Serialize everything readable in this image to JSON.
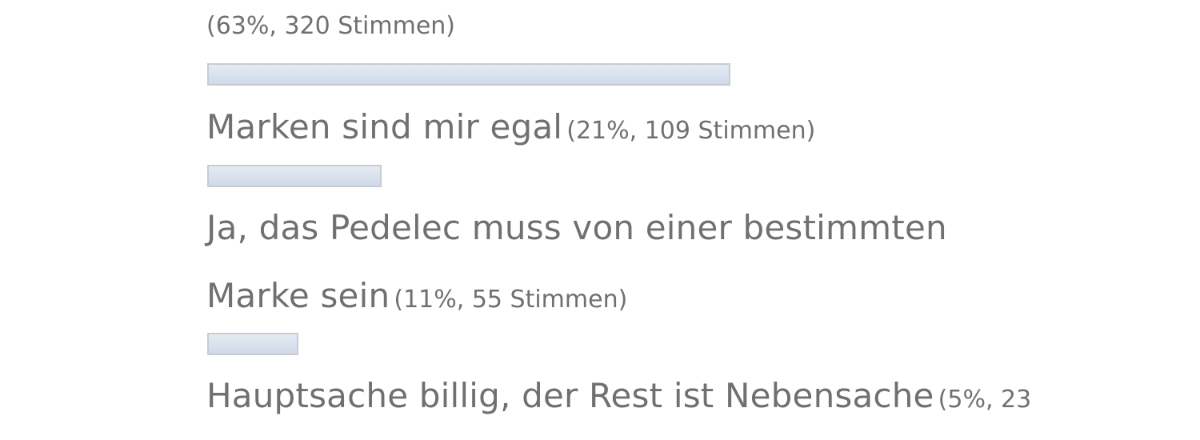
{
  "chart_data": {
    "type": "bar",
    "orientation": "horizontal",
    "title": "",
    "categories": [
      "",
      "Marken sind mir egal",
      "Ja, das Pedelec muss von einer bestimmten Marke sein",
      "Hauptsache billig, der Rest ist Nebensache"
    ],
    "series": [
      {
        "values": [
          63,
          21,
          11,
          5
        ],
        "votes": [
          320,
          109,
          55,
          23
        ]
      }
    ],
    "meta_texts": [
      "(63%, 320 Stimmen)",
      "(21%, 109 Stimmen)",
      "(11%, 55 Stimmen)",
      "(5%, 23"
    ],
    "label_lines": {
      "option_2": "Marken sind mir egal",
      "option_3_line1": "Ja, das Pedelec muss von einer bestimmten",
      "option_3_line2": "Marke sein",
      "option_4": "Hauptsache billig, der Rest ist Nebensache"
    },
    "unit": "%",
    "xlim": [
      0,
      100
    ],
    "bar_colors": {
      "fill": "#dce4ef",
      "border": "#c9cbd0"
    },
    "text_color": "#707070"
  }
}
